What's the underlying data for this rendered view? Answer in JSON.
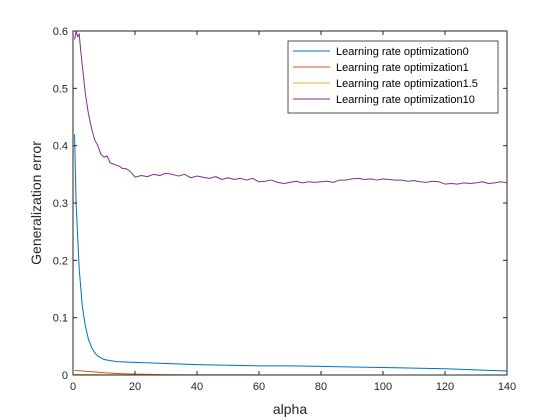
{
  "chart_data": {
    "type": "line",
    "xlabel": "alpha",
    "ylabel": "Generalization error",
    "xlim": [
      0,
      140
    ],
    "ylim": [
      0,
      0.6
    ],
    "xticks": [
      0,
      20,
      40,
      60,
      80,
      100,
      120,
      140
    ],
    "yticks": [
      0,
      0.1,
      0.2,
      0.3,
      0.4,
      0.5,
      0.6
    ],
    "grid": false,
    "legend_position": "top-right",
    "series": [
      {
        "name": "Learning rate optimization0",
        "color": "#0072BD",
        "x": [
          0.5,
          1,
          2,
          3,
          4,
          5,
          6,
          7,
          8,
          10,
          12,
          15,
          20,
          30,
          40,
          50,
          60,
          70,
          80,
          90,
          100,
          110,
          120,
          130,
          140
        ],
        "y": [
          0.42,
          0.3,
          0.185,
          0.12,
          0.085,
          0.062,
          0.048,
          0.039,
          0.033,
          0.027,
          0.025,
          0.023,
          0.022,
          0.02,
          0.018,
          0.017,
          0.016,
          0.016,
          0.015,
          0.014,
          0.013,
          0.012,
          0.011,
          0.009,
          0.007
        ]
      },
      {
        "name": "Learning rate optimization1",
        "color": "#D95319",
        "x": [
          0.5,
          5,
          10,
          15,
          20,
          25,
          30,
          40,
          60,
          80,
          100,
          120,
          140
        ],
        "y": [
          0.008,
          0.006,
          0.004,
          0.0025,
          0.0015,
          0.001,
          0.0005,
          0.0002,
          0.0001,
          0.0,
          0.0,
          0.0,
          0.0
        ]
      },
      {
        "name": "Learning rate optimization1.5",
        "color": "#EDB120",
        "x": [
          0.5,
          10,
          20,
          40,
          60,
          80,
          100,
          120,
          140
        ],
        "y": [
          0.001,
          0.0005,
          0.0003,
          0.0002,
          0.0001,
          0.0001,
          0.0,
          0.0,
          0.0
        ]
      },
      {
        "name": "Learning rate optimization10",
        "color": "#7E2F8E",
        "x": [
          0.5,
          1,
          1.5,
          2,
          2.5,
          3,
          4,
          5,
          6,
          7,
          8,
          9,
          10,
          11,
          12,
          13,
          14,
          15,
          16,
          17,
          18,
          19,
          20,
          22,
          24,
          26,
          28,
          30,
          32,
          34,
          36,
          38,
          40,
          42,
          44,
          46,
          48,
          50,
          52,
          54,
          56,
          58,
          60,
          62,
          64,
          66,
          68,
          70,
          72,
          74,
          76,
          78,
          80,
          82,
          84,
          86,
          88,
          90,
          92,
          94,
          96,
          98,
          100,
          102,
          104,
          106,
          108,
          110,
          112,
          114,
          116,
          118,
          120,
          122,
          124,
          126,
          128,
          130,
          132,
          134,
          136,
          138,
          140
        ],
        "y": [
          0.585,
          0.6,
          0.59,
          0.595,
          0.565,
          0.54,
          0.49,
          0.455,
          0.43,
          0.41,
          0.4,
          0.385,
          0.38,
          0.382,
          0.37,
          0.368,
          0.366,
          0.364,
          0.36,
          0.36,
          0.357,
          0.352,
          0.345,
          0.348,
          0.346,
          0.35,
          0.348,
          0.352,
          0.35,
          0.347,
          0.35,
          0.344,
          0.347,
          0.345,
          0.343,
          0.346,
          0.341,
          0.344,
          0.341,
          0.343,
          0.34,
          0.343,
          0.337,
          0.338,
          0.34,
          0.336,
          0.334,
          0.336,
          0.338,
          0.335,
          0.337,
          0.336,
          0.337,
          0.338,
          0.336,
          0.34,
          0.34,
          0.342,
          0.343,
          0.341,
          0.342,
          0.34,
          0.342,
          0.341,
          0.34,
          0.34,
          0.338,
          0.339,
          0.337,
          0.336,
          0.338,
          0.337,
          0.333,
          0.334,
          0.333,
          0.335,
          0.334,
          0.335,
          0.337,
          0.334,
          0.335,
          0.337,
          0.335
        ]
      }
    ]
  }
}
